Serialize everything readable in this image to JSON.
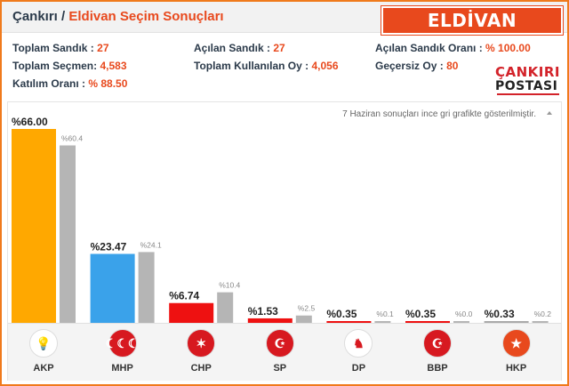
{
  "header": {
    "province": "Çankırı",
    "separator": "/",
    "title": "Eldivan Seçim Sonuçları",
    "badge": "ELDİVAN"
  },
  "stats": {
    "toplam_sandik": {
      "label": "Toplam Sandık :",
      "value": "27"
    },
    "toplam_secmen": {
      "label": "Toplam Seçmen:",
      "value": "4,583"
    },
    "katilim": {
      "label": "Katılım Oranı :",
      "value": "% 88.50"
    },
    "acilan_sandik": {
      "label": "Açılan Sandık :",
      "value": "27"
    },
    "kullanilan_oy": {
      "label": "Toplam Kullanılan Oy :",
      "value": "4,056"
    },
    "acilan_oran": {
      "label": "Açılan Sandık Oranı :",
      "value": "% 100.00"
    },
    "gecersiz": {
      "label": "Geçersiz Oy :",
      "value": "80"
    }
  },
  "logo": {
    "line1": "ÇANKIRI",
    "line2": "POSTASI"
  },
  "note": "7 Haziran sonuçları ince gri grafikte gösterilmiştir.",
  "colors": {
    "accent": "#e8491d",
    "frame": "#f07a1c",
    "prev": "#b5b5b5"
  },
  "chart_data": {
    "type": "bar",
    "categories": [
      "AKP",
      "MHP",
      "CHP",
      "SP",
      "DP",
      "BBP",
      "HKP"
    ],
    "series": [
      {
        "values": [
          66.0,
          23.47,
          6.74,
          1.53,
          0.35,
          0.35,
          0.33
        ],
        "labels": [
          "%66.00",
          "%23.47",
          "%6.74",
          "%1.53",
          "%0.35",
          "%0.35",
          "%0.33"
        ]
      },
      {
        "values": [
          60.4,
          24.1,
          10.4,
          2.5,
          0.1,
          0.0,
          0.2
        ],
        "labels": [
          "%60.4",
          "%24.1",
          "%10.4",
          "%2.5",
          "%0.1",
          "%0.0",
          "%0.2"
        ]
      }
    ],
    "bar_colors": [
      "#ffa800",
      "#3aa2ea",
      "#ee1111",
      "#ee1111",
      "#ee1111",
      "#ee1111",
      "#aaaaaa"
    ],
    "ylim": [
      0,
      66
    ]
  },
  "parties": [
    {
      "name": "AKP",
      "icon": "akp-bulb-icon",
      "color": "#ffffff",
      "glyph": "💡"
    },
    {
      "name": "MHP",
      "icon": "mhp-crescents-icon",
      "color": "#d71920",
      "glyph": "☾☾☾"
    },
    {
      "name": "CHP",
      "icon": "chp-arrows-icon",
      "color": "#d71920",
      "glyph": "✶"
    },
    {
      "name": "SP",
      "icon": "sp-crescent-star-icon",
      "color": "#d71920",
      "glyph": "☪"
    },
    {
      "name": "DP",
      "icon": "dp-horse-icon",
      "color": "#ffffff",
      "glyph": "♞"
    },
    {
      "name": "BBP",
      "icon": "bbp-crescent-icon",
      "color": "#d71920",
      "glyph": "☪"
    },
    {
      "name": "HKP",
      "icon": "hkp-star-icon",
      "color": "#e8491d",
      "glyph": "★"
    }
  ]
}
